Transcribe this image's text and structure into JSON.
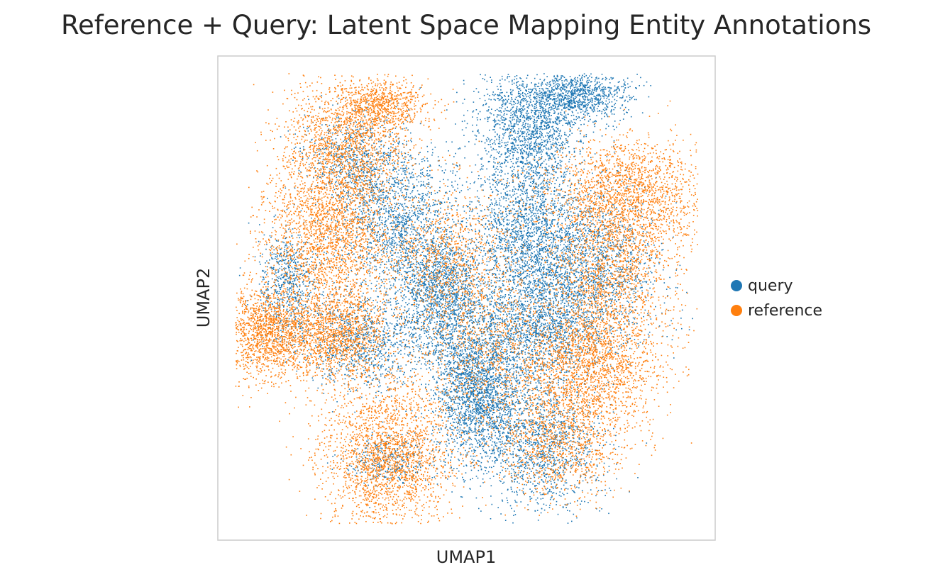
{
  "chart_data": {
    "type": "scatter",
    "title": "Reference + Query: Latent Space Mapping Entity Annotations",
    "xlabel": "UMAP1",
    "ylabel": "UMAP2",
    "xlim": [
      -10,
      10
    ],
    "ylim": [
      -10,
      10
    ],
    "grid": false,
    "ticks_visible": false,
    "legend_position": "right",
    "series": [
      {
        "name": "query",
        "color": "#1f77b4",
        "regions": [
          {
            "x": -2.8,
            "y": 3.2,
            "sx": 1.3,
            "sy": 1.6,
            "weight": 5
          },
          {
            "x": -1.0,
            "y": 0.2,
            "sx": 0.9,
            "sy": 1.4,
            "weight": 5
          },
          {
            "x": 0.4,
            "y": -3.8,
            "sx": 0.9,
            "sy": 1.5,
            "weight": 7
          },
          {
            "x": 2.5,
            "y": 7.2,
            "sx": 1.0,
            "sy": 1.1,
            "weight": 4
          },
          {
            "x": 4.5,
            "y": 8.4,
            "sx": 1.0,
            "sy": 0.5,
            "weight": 3
          },
          {
            "x": 2.4,
            "y": 3.0,
            "sx": 1.0,
            "sy": 2.0,
            "weight": 6
          },
          {
            "x": 4.8,
            "y": 1.2,
            "sx": 1.4,
            "sy": 1.8,
            "weight": 6
          },
          {
            "x": 2.8,
            "y": -1.2,
            "sx": 1.2,
            "sy": 1.2,
            "weight": 4
          },
          {
            "x": 3.0,
            "y": -6.0,
            "sx": 1.2,
            "sy": 1.4,
            "weight": 4
          },
          {
            "x": -7.2,
            "y": 0.6,
            "sx": 0.6,
            "sy": 1.2,
            "weight": 2
          },
          {
            "x": -4.2,
            "y": -1.8,
            "sx": 1.2,
            "sy": 1.0,
            "weight": 3
          },
          {
            "x": -4.5,
            "y": 5.8,
            "sx": 1.0,
            "sy": 1.0,
            "weight": 2
          },
          {
            "x": -3.2,
            "y": -6.7,
            "sx": 0.8,
            "sy": 0.5,
            "weight": 1
          }
        ]
      },
      {
        "name": "reference",
        "color": "#ff7f0e",
        "regions": [
          {
            "x": -4.8,
            "y": 6.3,
            "sx": 1.3,
            "sy": 1.4,
            "weight": 5
          },
          {
            "x": -3.4,
            "y": 8.0,
            "sx": 0.9,
            "sy": 0.5,
            "weight": 2
          },
          {
            "x": -5.6,
            "y": 2.6,
            "sx": 1.3,
            "sy": 1.5,
            "weight": 6
          },
          {
            "x": -8.0,
            "y": -1.4,
            "sx": 1.0,
            "sy": 1.0,
            "weight": 5
          },
          {
            "x": -5.2,
            "y": -1.4,
            "sx": 1.0,
            "sy": 1.0,
            "weight": 4
          },
          {
            "x": -3.2,
            "y": -6.5,
            "sx": 1.3,
            "sy": 1.6,
            "weight": 7
          },
          {
            "x": 6.5,
            "y": 4.3,
            "sx": 1.7,
            "sy": 1.2,
            "weight": 6
          },
          {
            "x": 5.8,
            "y": 1.0,
            "sx": 1.3,
            "sy": 1.5,
            "weight": 4
          },
          {
            "x": 5.0,
            "y": -2.8,
            "sx": 1.4,
            "sy": 1.4,
            "weight": 6
          },
          {
            "x": 3.8,
            "y": -6.0,
            "sx": 1.2,
            "sy": 1.2,
            "weight": 3
          },
          {
            "x": -0.7,
            "y": 1.8,
            "sx": 1.4,
            "sy": 1.6,
            "weight": 3
          },
          {
            "x": 0.8,
            "y": -2.0,
            "sx": 1.5,
            "sy": 2.0,
            "weight": 3
          }
        ]
      }
    ]
  }
}
